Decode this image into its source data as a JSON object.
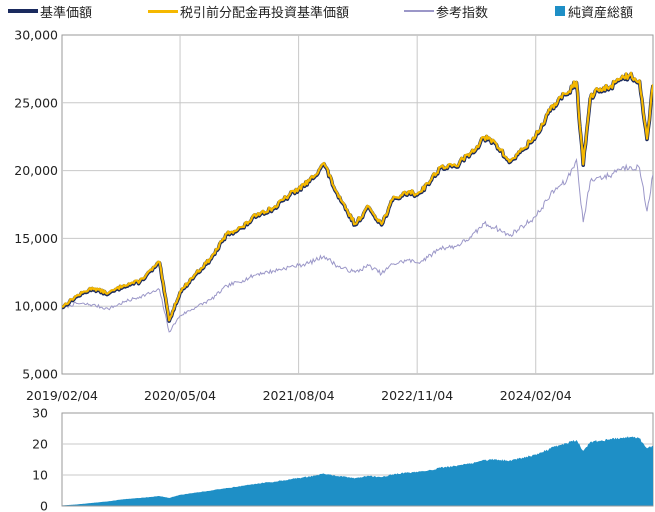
{
  "legend": {
    "nav": "基準価額",
    "reinvested": "税引前分配金再投資基準価額",
    "index": "参考指数",
    "assets": "純資産総額"
  },
  "colors": {
    "nav": "#1a2a5e",
    "reinvested": "#f5b800",
    "index": "#9b97c8",
    "assets": "#1e8fc6",
    "grid": "#c8c8c8",
    "axis": "#9a9a9a"
  },
  "chart_data": [
    {
      "type": "line",
      "title": "",
      "ylim": [
        5000,
        30000
      ],
      "y_ticks": [
        "5,000",
        "10,000",
        "15,000",
        "20,000",
        "25,000",
        "30,000"
      ],
      "x_ticks": [
        "2019/02/04",
        "2020/05/04",
        "2021/08/04",
        "2022/11/04",
        "2024/02/04"
      ],
      "x_range": [
        "2019/02/04",
        "2025/05/01"
      ],
      "series": [
        {
          "name": "基準価額",
          "x": [
            "2019/02/04",
            "2019/04/01",
            "2019/06/01",
            "2019/08/01",
            "2019/10/01",
            "2019/12/01",
            "2020/02/15",
            "2020/03/23",
            "2020/05/04",
            "2020/07/01",
            "2020/09/01",
            "2020/11/01",
            "2021/01/01",
            "2021/03/01",
            "2021/05/01",
            "2021/07/01",
            "2021/08/04",
            "2021/09/15",
            "2021/11/10",
            "2022/01/05",
            "2022/03/10",
            "2022/05/01",
            "2022/06/20",
            "2022/08/01",
            "2022/10/01",
            "2022/11/04",
            "2022/12/15",
            "2023/02/01",
            "2023/04/01",
            "2023/06/01",
            "2023/07/20",
            "2023/09/01",
            "2023/10/25",
            "2023/12/15",
            "2024/02/04",
            "2024/03/31",
            "2024/05/01",
            "2024/06/01",
            "2024/07/10",
            "2024/08/05",
            "2024/09/01",
            "2024/10/01",
            "2024/11/15",
            "2024/12/15",
            "2025/02/01",
            "2025/03/10",
            "2025/04/08",
            "2025/05/01"
          ],
          "values": [
            9900,
            10700,
            11300,
            10900,
            11500,
            11800,
            13200,
            8900,
            11000,
            12300,
            13500,
            15300,
            15800,
            16800,
            17200,
            18200,
            18600,
            19200,
            20500,
            18000,
            16000,
            17300,
            16000,
            17800,
            18400,
            18200,
            19000,
            20200,
            20300,
            21300,
            22400,
            22000,
            20600,
            21500,
            22500,
            24400,
            25200,
            25600,
            26500,
            20400,
            25300,
            25900,
            26100,
            26700,
            27000,
            26600,
            22300,
            26300
          ]
        },
        {
          "name": "税引前分配金再投資基準価額",
          "x": [
            "2019/02/04",
            "2019/04/01",
            "2019/06/01",
            "2019/08/01",
            "2019/10/01",
            "2019/12/01",
            "2020/02/15",
            "2020/03/23",
            "2020/05/04",
            "2020/07/01",
            "2020/09/01",
            "2020/11/01",
            "2021/01/01",
            "2021/03/01",
            "2021/05/01",
            "2021/07/01",
            "2021/08/04",
            "2021/09/15",
            "2021/11/10",
            "2022/01/05",
            "2022/03/10",
            "2022/05/01",
            "2022/06/20",
            "2022/08/01",
            "2022/10/01",
            "2022/11/04",
            "2022/12/15",
            "2023/02/01",
            "2023/04/01",
            "2023/06/01",
            "2023/07/20",
            "2023/09/01",
            "2023/10/25",
            "2023/12/15",
            "2024/02/04",
            "2024/03/31",
            "2024/05/01",
            "2024/06/01",
            "2024/07/10",
            "2024/08/05",
            "2024/09/01",
            "2024/10/01",
            "2024/11/15",
            "2024/12/15",
            "2025/02/01",
            "2025/03/10",
            "2025/04/08",
            "2025/05/01"
          ],
          "values": [
            9900,
            10700,
            11300,
            10900,
            11500,
            11800,
            13200,
            8900,
            11000,
            12300,
            13500,
            15300,
            15800,
            16800,
            17200,
            18200,
            18600,
            19200,
            20500,
            18000,
            16000,
            17300,
            16000,
            17800,
            18400,
            18200,
            19000,
            20200,
            20300,
            21300,
            22400,
            22000,
            20600,
            21500,
            22500,
            24400,
            25200,
            25600,
            26500,
            20400,
            25300,
            25900,
            26100,
            26700,
            27000,
            26600,
            22300,
            26300
          ]
        },
        {
          "name": "参考指数",
          "x": [
            "2019/02/04",
            "2019/04/01",
            "2019/06/01",
            "2019/08/01",
            "2019/10/01",
            "2019/12/01",
            "2020/02/15",
            "2020/03/23",
            "2020/05/04",
            "2020/07/01",
            "2020/09/01",
            "2020/11/01",
            "2021/01/01",
            "2021/03/01",
            "2021/05/01",
            "2021/07/01",
            "2021/08/04",
            "2021/09/15",
            "2021/11/10",
            "2022/01/05",
            "2022/03/10",
            "2022/05/01",
            "2022/06/20",
            "2022/08/01",
            "2022/10/01",
            "2022/11/04",
            "2022/12/15",
            "2023/02/01",
            "2023/04/01",
            "2023/06/01",
            "2023/07/20",
            "2023/09/01",
            "2023/10/25",
            "2023/12/15",
            "2024/02/04",
            "2024/03/31",
            "2024/05/01",
            "2024/06/01",
            "2024/07/10",
            "2024/08/05",
            "2024/09/01",
            "2024/10/01",
            "2024/11/15",
            "2024/12/15",
            "2025/02/01",
            "2025/03/10",
            "2025/04/08",
            "2025/05/01"
          ],
          "values": [
            9900,
            10200,
            10100,
            9800,
            10300,
            10700,
            11200,
            8100,
            9300,
            9900,
            10500,
            11500,
            11900,
            12400,
            12600,
            12900,
            13000,
            13200,
            13700,
            12900,
            12500,
            13000,
            12400,
            13100,
            13400,
            13200,
            13600,
            14300,
            14400,
            15100,
            16100,
            15800,
            15200,
            15900,
            16600,
            18200,
            18800,
            19200,
            20800,
            16200,
            19200,
            19500,
            19600,
            20100,
            20300,
            20200,
            17000,
            19700
          ]
        }
      ]
    },
    {
      "type": "area",
      "title": "",
      "ylim": [
        0,
        30
      ],
      "y_ticks": [
        "0",
        "10",
        "20",
        "30"
      ],
      "x_range": [
        "2019/02/04",
        "2025/05/01"
      ],
      "series": [
        {
          "name": "純資産総額",
          "x": [
            "2019/02/04",
            "2019/04/01",
            "2019/06/01",
            "2019/08/01",
            "2019/10/01",
            "2019/12/01",
            "2020/02/15",
            "2020/03/23",
            "2020/05/04",
            "2020/07/01",
            "2020/09/01",
            "2020/11/01",
            "2021/01/01",
            "2021/03/01",
            "2021/05/01",
            "2021/07/01",
            "2021/08/04",
            "2021/09/15",
            "2021/11/10",
            "2022/01/05",
            "2022/03/10",
            "2022/05/01",
            "2022/06/20",
            "2022/08/01",
            "2022/10/01",
            "2022/11/04",
            "2022/12/15",
            "2023/02/01",
            "2023/04/01",
            "2023/06/01",
            "2023/07/20",
            "2023/09/01",
            "2023/10/25",
            "2023/12/15",
            "2024/02/04",
            "2024/03/31",
            "2024/05/01",
            "2024/06/01",
            "2024/07/10",
            "2024/08/05",
            "2024/09/01",
            "2024/10/01",
            "2024/11/15",
            "2024/12/15",
            "2025/02/01",
            "2025/03/10",
            "2025/04/08",
            "2025/05/01"
          ],
          "values": [
            0.2,
            0.5,
            1.0,
            1.5,
            2.2,
            2.6,
            3.2,
            2.6,
            3.6,
            4.3,
            5.0,
            5.8,
            6.5,
            7.3,
            7.8,
            8.6,
            9.0,
            9.5,
            10.4,
            9.6,
            9.0,
            9.7,
            9.3,
            10.2,
            10.8,
            10.9,
            11.4,
            12.3,
            12.9,
            13.8,
            14.8,
            15.0,
            14.6,
            15.6,
            16.6,
            18.5,
            19.5,
            20.3,
            21.3,
            17.8,
            20.6,
            21.0,
            21.4,
            22.0,
            22.3,
            21.8,
            18.6,
            19.3
          ]
        }
      ]
    }
  ]
}
